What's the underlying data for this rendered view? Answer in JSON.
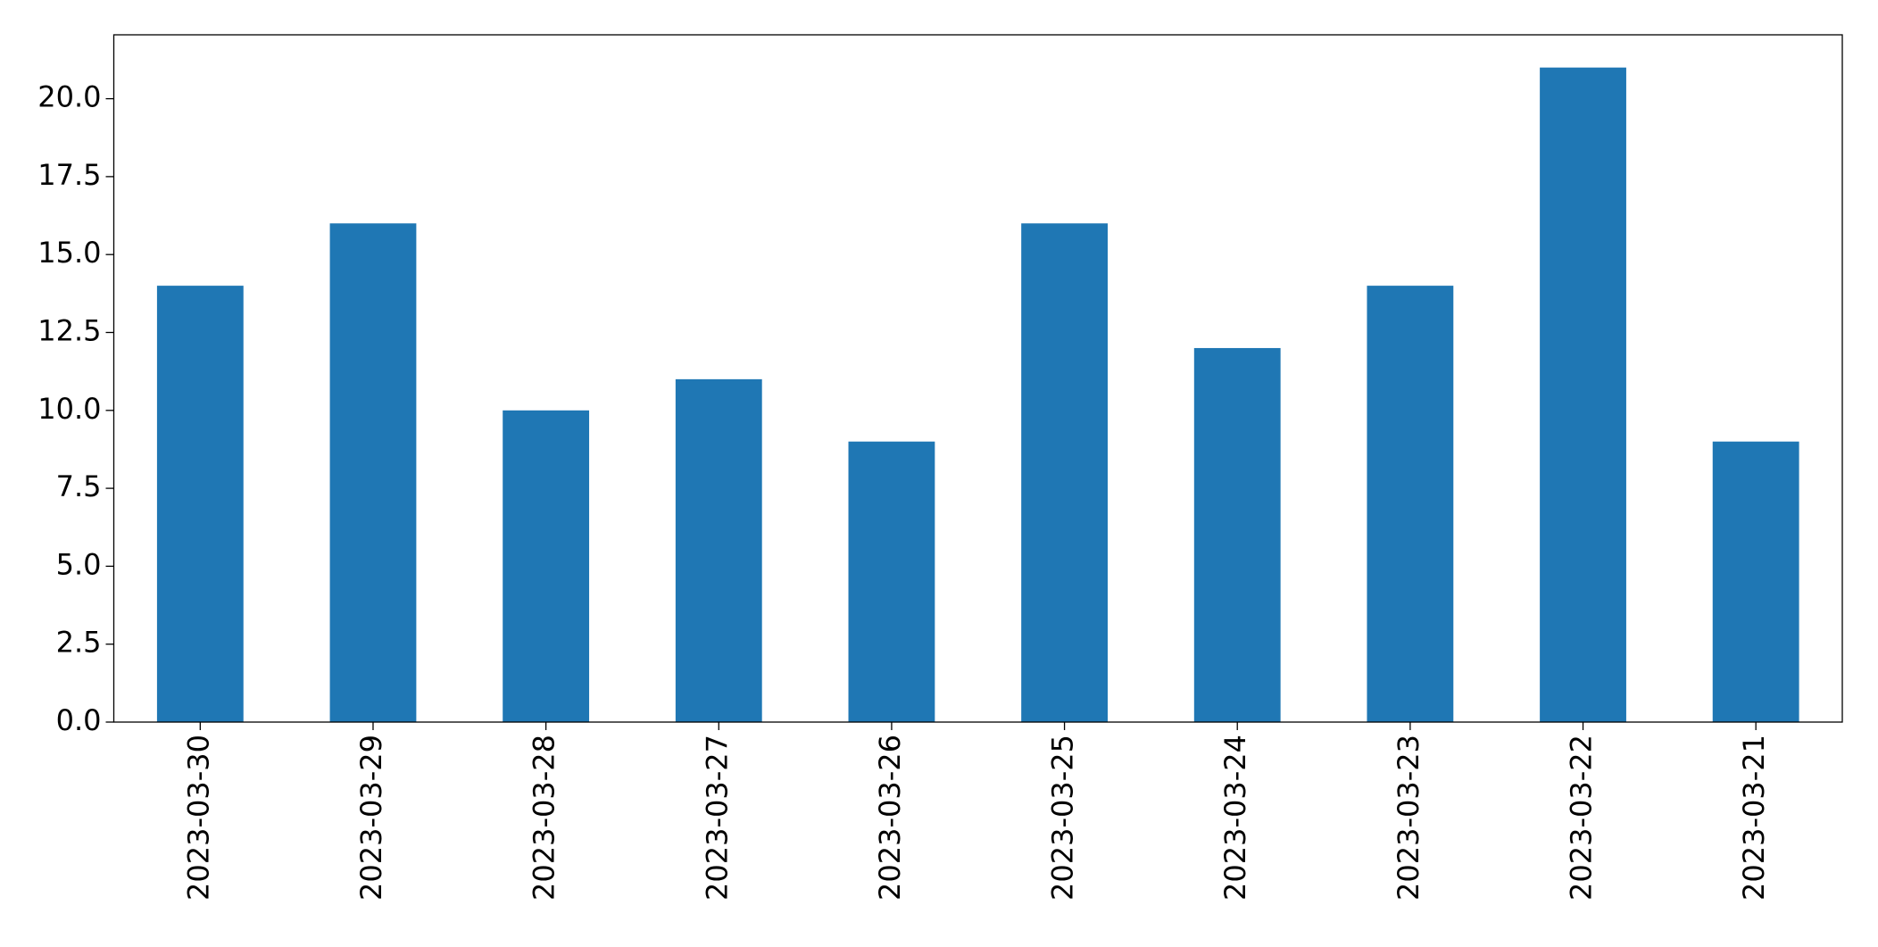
{
  "chart_data": {
    "type": "bar",
    "categories": [
      "2023-03-30",
      "2023-03-29",
      "2023-03-28",
      "2023-03-27",
      "2023-03-26",
      "2023-03-25",
      "2023-03-24",
      "2023-03-23",
      "2023-03-22",
      "2023-03-21"
    ],
    "values": [
      14,
      16,
      10,
      11,
      9,
      16,
      12,
      14,
      21,
      9
    ],
    "color": "#1f77b4",
    "ylim": [
      0,
      22.05
    ],
    "yticks": [
      {
        "value": 0,
        "label": "0.0"
      },
      {
        "value": 2.5,
        "label": "2.5"
      },
      {
        "value": 5,
        "label": "5.0"
      },
      {
        "value": 7.5,
        "label": "7.5"
      },
      {
        "value": 10,
        "label": "10.0"
      },
      {
        "value": 12.5,
        "label": "12.5"
      },
      {
        "value": 15,
        "label": "15.0"
      },
      {
        "value": 17.5,
        "label": "17.5"
      },
      {
        "value": 20,
        "label": "20.0"
      }
    ],
    "grid": false
  }
}
